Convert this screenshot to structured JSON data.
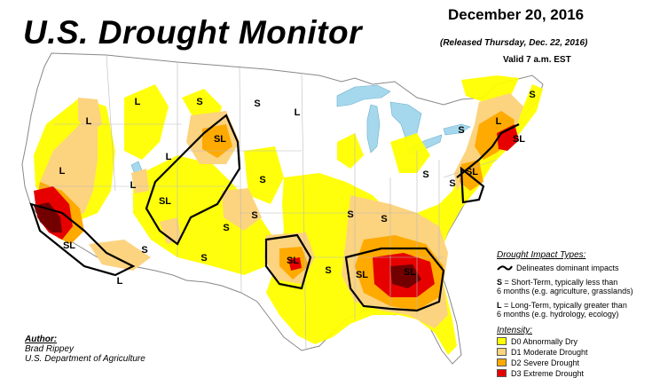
{
  "header": {
    "title": "U.S. Drought Monitor",
    "date": "December 20, 2016",
    "released": "(Released Thursday, Dec. 22, 2016)",
    "valid": "Valid 7 a.m. EST"
  },
  "legend": {
    "impact_header": "Drought Impact Types:",
    "line_desc": "Delineates dominant impacts",
    "short_term_key": "S",
    "short_term_text": " = Short-Term, typically less than",
    "short_term_text2": "6 months (e.g. agriculture, grasslands)",
    "long_term_key": "L",
    "long_term_text": " = Long-Term, typically greater than",
    "long_term_text2": "6 months (e.g. hydrology, ecology)",
    "intensity_header": "Intensity:",
    "categories": [
      {
        "label": "D0 Abnormally Dry",
        "color": "#ffff00"
      },
      {
        "label": "D1 Moderate Drought",
        "color": "#fcd37f"
      },
      {
        "label": "D2 Severe Drought",
        "color": "#ffaa00"
      },
      {
        "label": "D3 Extreme Drought",
        "color": "#e60000"
      }
    ]
  },
  "author": {
    "label": "Author:",
    "name": "Brad Rippey",
    "org": "U.S. Department of Agriculture"
  },
  "map_labels": [
    "L",
    "L",
    "L",
    "S",
    "SL",
    "S",
    "L",
    "SL",
    "S",
    "S",
    "SL",
    "SL",
    "S",
    "S",
    "SL",
    "SL",
    "S",
    "SL",
    "S",
    "L",
    "SL",
    "S",
    "S",
    "L",
    "S",
    "L",
    "S",
    "L",
    "S",
    "S"
  ],
  "colors": {
    "land": "#ffffff",
    "water": "#a6d8ed",
    "border": "#bbbbbb",
    "impact_line": "#000000"
  }
}
